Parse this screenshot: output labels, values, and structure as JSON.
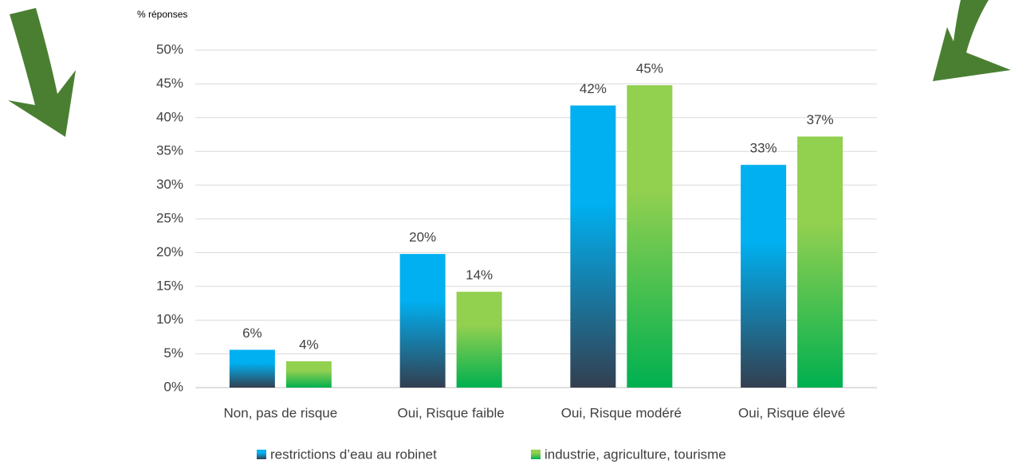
{
  "chart_data": {
    "type": "bar",
    "y_label": "% réponses",
    "categories": [
      "Non, pas de risque",
      "Oui, Risque faible",
      "Oui, Risque modéré",
      "Oui, Risque élevé"
    ],
    "series": [
      {
        "name": "restrictions d’eau au robinet",
        "color": "#00b0f0",
        "gradient_end": "#333f50",
        "values": [
          5.6,
          19.8,
          41.8,
          33
        ],
        "value_labels": [
          "6%",
          "20%",
          "42%",
          "33%"
        ]
      },
      {
        "name": "industrie, agriculture, tourisme",
        "color": "#92d050",
        "gradient_end": "#00b050",
        "values": [
          3.9,
          14.2,
          44.8,
          37.2
        ],
        "value_labels": [
          "4%",
          "14%",
          "45%",
          "37%"
        ]
      }
    ],
    "ylim": [
      0,
      50
    ],
    "yticks": [
      {
        "value": 0,
        "label": "0%"
      },
      {
        "value": 5,
        "label": "5%"
      },
      {
        "value": 10,
        "label": "10%"
      },
      {
        "value": 15,
        "label": "15%"
      },
      {
        "value": 20,
        "label": "20%"
      },
      {
        "value": 25,
        "label": "25%"
      },
      {
        "value": 30,
        "label": "30%"
      },
      {
        "value": 35,
        "label": "35%"
      },
      {
        "value": 40,
        "label": "40%"
      },
      {
        "value": 45,
        "label": "45%"
      },
      {
        "value": 50,
        "label": "50%"
      }
    ],
    "grid": true,
    "legend": "bottom"
  }
}
